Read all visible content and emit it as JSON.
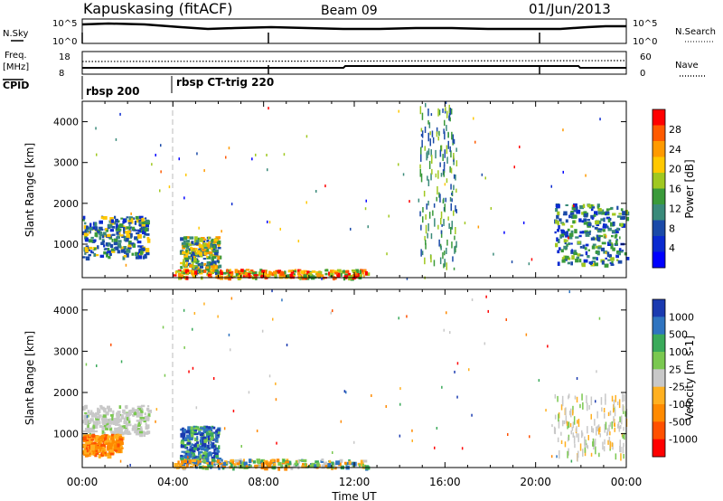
{
  "header": {
    "station": "Kapuskasing (fitACF)",
    "beam": "Beam 09",
    "date": "01/Jun/2013"
  },
  "summary_panels": {
    "nsky_label": "N.Sky",
    "nsky_ticks": [
      "10^5",
      "10^0"
    ],
    "nsearch_label": "N.Search",
    "freq_label_top": "Freq.",
    "freq_label_unit": "[MHz]",
    "freq_ticks": [
      "18",
      "8"
    ],
    "nave_label": "Nave",
    "nave_ticks": [
      "60",
      "0"
    ],
    "cpid_label": "CPID",
    "cpid_segments": [
      "rbsp 200",
      "rbsp CT-trig 220"
    ]
  },
  "chart_data": [
    {
      "type": "heatmap",
      "title": "",
      "xlabel": "",
      "ylabel": "Slant Range [km]",
      "xlim_hours": [
        0,
        24
      ],
      "ylim_km": [
        180,
        4500
      ],
      "y_ticks": [
        "4000",
        "3000",
        "2000",
        "1000"
      ],
      "colorbar": {
        "label": "Power [dB]",
        "ticks": [
          "28",
          "24",
          "20",
          "16",
          "12",
          "8",
          "4"
        ],
        "colors": [
          "#ff0000",
          "#ff5a00",
          "#ff9a00",
          "#ffc800",
          "#a0c820",
          "#3a9a3a",
          "#3a8a7a",
          "#1a4aa8",
          "#0a2ad0",
          "#0000ff"
        ]
      },
      "regions": [
        {
          "t": [
            0.0,
            2.9
          ],
          "r": [
            700,
            1700
          ],
          "value": "Power 4-12 dB (blue/green), patches up to 20 dB"
        },
        {
          "t": [
            4.3,
            6.0
          ],
          "r": [
            300,
            1200
          ],
          "value": "Power 8-24 dB"
        },
        {
          "t": [
            4.0,
            12.5
          ],
          "r": [
            200,
            400
          ],
          "value": "Power 12-28 dB near-range echoes"
        },
        {
          "t": [
            20.8,
            24.0
          ],
          "r": [
            500,
            2000
          ],
          "value": "Power 4-16 dB"
        },
        {
          "t": [
            14.8,
            16.5
          ],
          "r": [
            500,
            4500
          ],
          "value": "Power 4-16 dB, scattered vertical streaks"
        }
      ]
    },
    {
      "type": "heatmap",
      "title": "",
      "xlabel": "Time UT",
      "ylabel": "Slant Range [km]",
      "xlim_hours": [
        0,
        24
      ],
      "ylim_km": [
        180,
        4500
      ],
      "x_ticks": [
        "00:00",
        "04:00",
        "08:00",
        "12:00",
        "16:00",
        "20:00",
        "00:00"
      ],
      "y_ticks": [
        "4000",
        "3000",
        "2000",
        "1000"
      ],
      "colorbar": {
        "label": "Velocity [m s-1]",
        "ticks": [
          "1000",
          "500",
          "100",
          "25",
          "-25",
          "-100",
          "-500",
          "-1000"
        ],
        "colors": [
          "#1a3ab0",
          "#2f74c0",
          "#3aaa5a",
          "#7ac850",
          "#c8c8c8",
          "#ffb020",
          "#ff8a00",
          "#ff5000",
          "#ff0000"
        ]
      },
      "regions": [
        {
          "t": [
            0.0,
            2.9
          ],
          "r": [
            1000,
            1700
          ],
          "value": "Velocity -25 to 25 m/s (grey)"
        },
        {
          "t": [
            0.0,
            1.7
          ],
          "r": [
            500,
            1000
          ],
          "value": "Velocity -100 to -500 m/s (orange)"
        },
        {
          "t": [
            4.3,
            6.0
          ],
          "r": [
            300,
            1200
          ],
          "value": "Velocity 100 to 1000 m/s (blue/green)"
        },
        {
          "t": [
            4.0,
            12.5
          ],
          "r": [
            200,
            400
          ],
          "value": "Velocity 25 to 500 m/s, mixed"
        },
        {
          "t": [
            20.8,
            24.0
          ],
          "r": [
            500,
            2000
          ],
          "value": "Velocity -25 to 25 m/s (grey)"
        }
      ]
    }
  ]
}
